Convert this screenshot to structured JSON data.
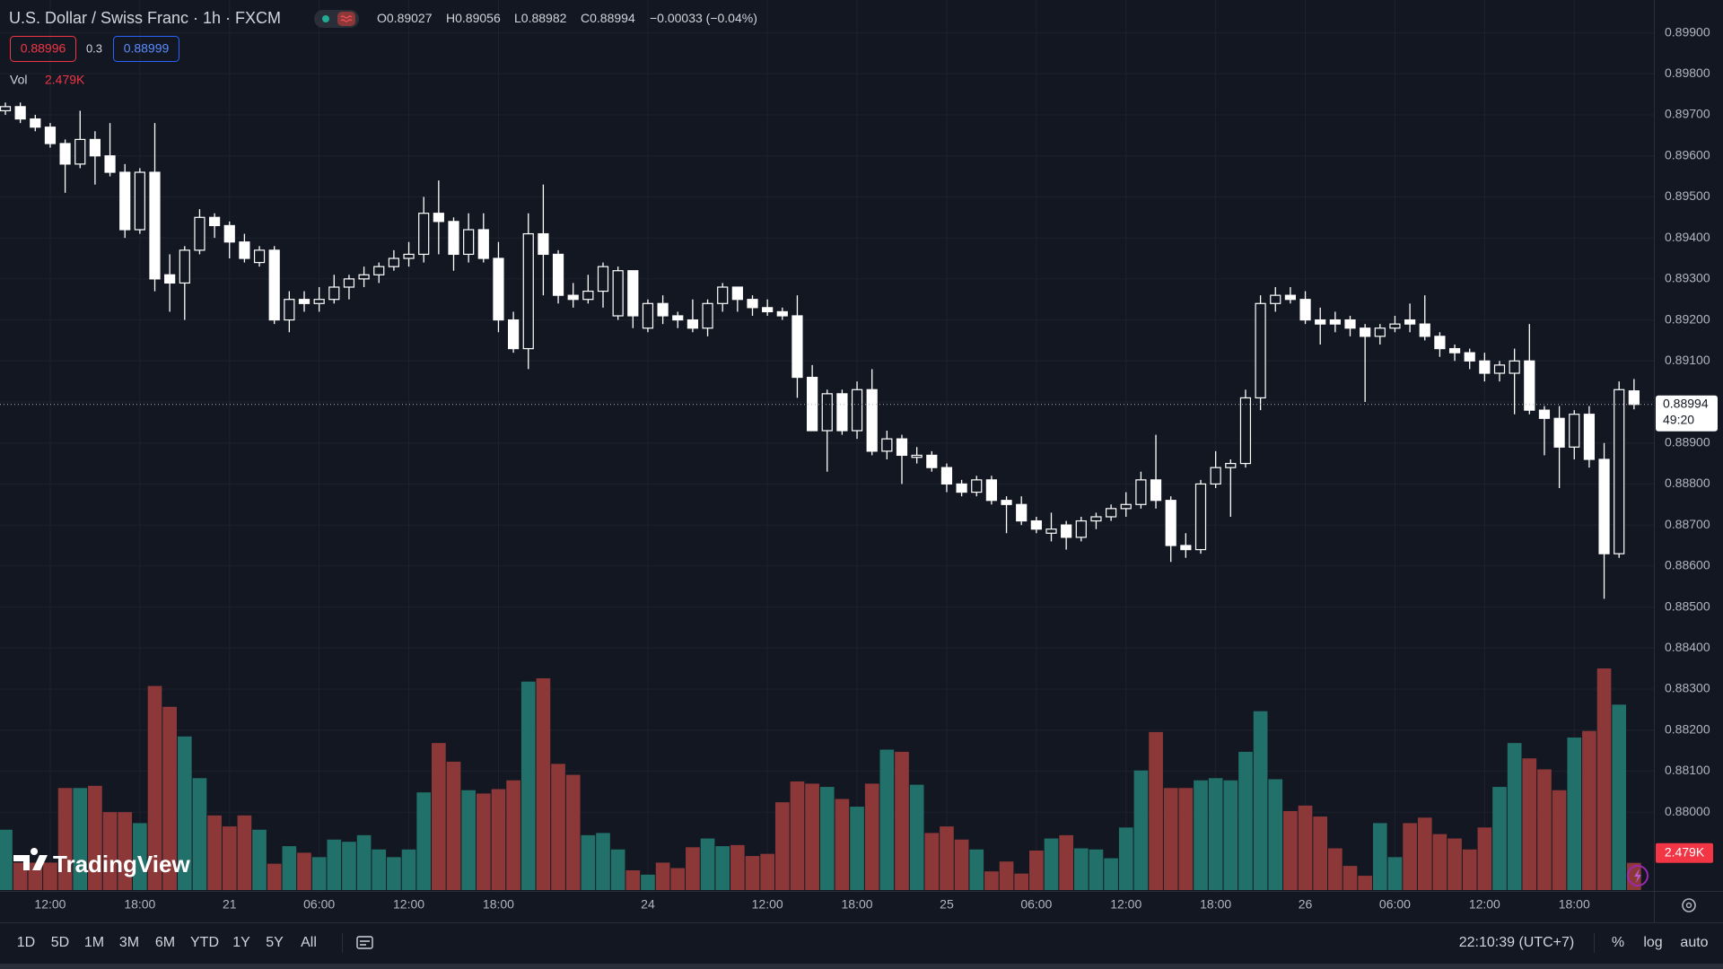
{
  "header": {
    "title": "U.S. Dollar / Swiss Franc · 1h · FXCM",
    "ohlc_labels": [
      "O",
      "H",
      "L",
      "C"
    ],
    "change": "−0.00033 (−0.04%)",
    "bid": "0.88996",
    "spread": "0.3",
    "ask": "0.88999",
    "volume_label": "Vol",
    "countdown": "49:20"
  },
  "logo": "TradingView",
  "toolbar": {
    "ranges": [
      "1D",
      "5D",
      "1M",
      "3M",
      "6M",
      "YTD",
      "1Y",
      "5Y",
      "All"
    ],
    "clock": "22:10:39 (UTC+7)",
    "options": [
      "%",
      "log",
      "auto"
    ]
  },
  "chart_data": {
    "type": "candlestick",
    "categories": [
      null,
      null,
      null,
      "12:00",
      null,
      null,
      null,
      null,
      null,
      "18:00",
      null,
      null,
      null,
      null,
      null,
      "21",
      null,
      null,
      null,
      null,
      null,
      "06:00",
      null,
      null,
      null,
      null,
      null,
      "12:00",
      null,
      null,
      null,
      null,
      null,
      "18:00",
      null,
      null,
      null,
      null,
      null,
      null,
      null,
      null,
      null,
      "24",
      null,
      null,
      null,
      null,
      null,
      null,
      null,
      "12:00",
      null,
      null,
      null,
      null,
      null,
      "18:00",
      null,
      null,
      null,
      null,
      null,
      "25",
      null,
      null,
      null,
      null,
      null,
      "06:00",
      null,
      null,
      null,
      null,
      null,
      "12:00",
      null,
      null,
      null,
      null,
      null,
      "18:00",
      null,
      null,
      null,
      null,
      null,
      "26",
      null,
      null,
      null,
      null,
      null,
      "06:00",
      null,
      null,
      null,
      null,
      null,
      "12:00",
      null,
      null,
      null,
      null,
      null,
      "18:00",
      null,
      null,
      null,
      null
    ],
    "open": [
      0.8971,
      0.8972,
      0.8969,
      0.8967,
      0.8963,
      0.8958,
      0.8964,
      0.896,
      0.8956,
      0.8942,
      0.8956,
      0.8931,
      0.8929,
      0.8937,
      0.8945,
      0.8943,
      0.8939,
      0.8934,
      0.8937,
      0.892,
      0.8925,
      0.8924,
      0.8925,
      0.8928,
      0.893,
      0.8931,
      0.8933,
      0.8935,
      0.8936,
      0.8946,
      0.8944,
      0.8936,
      0.8942,
      0.8935,
      0.892,
      0.8913,
      0.8941,
      0.8936,
      0.8926,
      0.8925,
      0.8927,
      0.8921,
      0.8932,
      0.8918,
      0.8924,
      0.8921,
      0.892,
      0.8918,
      0.8924,
      0.8928,
      0.8925,
      0.8923,
      0.8922,
      0.8921,
      0.8906,
      0.8893,
      0.8902,
      0.8893,
      0.8903,
      0.8888,
      0.8891,
      0.88865,
      0.8887,
      0.8884,
      0.888,
      0.8878,
      0.8881,
      0.8876,
      0.8875,
      0.8871,
      0.8868,
      0.887,
      0.8867,
      0.8871,
      0.8872,
      0.8874,
      0.8875,
      0.8881,
      0.8876,
      0.8865,
      0.8864,
      0.888,
      0.8884,
      0.8885,
      0.8901,
      0.8924,
      0.8926,
      0.8925,
      0.892,
      0.892,
      0.892,
      0.8918,
      0.8916,
      0.8918,
      0.892,
      0.8919,
      0.8916,
      0.8913,
      0.8912,
      0.891,
      0.8907,
      0.8907,
      0.891,
      0.8898,
      0.8896,
      0.8889,
      0.8897,
      0.8886,
      0.8863,
      0.89027
    ],
    "high": [
      0.8973,
      0.8973,
      0.897,
      0.8968,
      0.8964,
      0.8971,
      0.8966,
      0.8968,
      0.8958,
      0.8957,
      0.8968,
      0.8936,
      0.8938,
      0.8947,
      0.8946,
      0.8944,
      0.8941,
      0.8938,
      0.8938,
      0.8927,
      0.8927,
      0.8928,
      0.8931,
      0.8931,
      0.8933,
      0.8934,
      0.8937,
      0.8939,
      0.895,
      0.8954,
      0.8945,
      0.8946,
      0.8946,
      0.8939,
      0.8922,
      0.8946,
      0.8953,
      0.8937,
      0.8929,
      0.8931,
      0.8934,
      0.8933,
      0.8932,
      0.8925,
      0.8926,
      0.8922,
      0.8925,
      0.8925,
      0.8929,
      0.8928,
      0.8926,
      0.8925,
      0.8923,
      0.8926,
      0.8909,
      0.8903,
      0.8903,
      0.8905,
      0.8908,
      0.8893,
      0.8892,
      0.8889,
      0.8888,
      0.8885,
      0.8881,
      0.8882,
      0.8882,
      0.8877,
      0.8877,
      0.8872,
      0.8873,
      0.8871,
      0.8872,
      0.8873,
      0.8875,
      0.8878,
      0.8883,
      0.8892,
      0.8877,
      0.8868,
      0.8881,
      0.8888,
      0.8886,
      0.8903,
      0.8926,
      0.8928,
      0.8928,
      0.8927,
      0.8923,
      0.8922,
      0.8921,
      0.8919,
      0.8919,
      0.8921,
      0.8924,
      0.8926,
      0.8917,
      0.8914,
      0.8913,
      0.8912,
      0.891,
      0.8913,
      0.8919,
      0.8899,
      0.8899,
      0.8898,
      0.8899,
      0.889,
      0.8905,
      0.89056
    ],
    "low": [
      0.897,
      0.8968,
      0.8966,
      0.8962,
      0.8951,
      0.8957,
      0.8953,
      0.8955,
      0.894,
      0.8941,
      0.8927,
      0.8922,
      0.892,
      0.8936,
      0.894,
      0.8935,
      0.8934,
      0.8933,
      0.8919,
      0.8917,
      0.8922,
      0.8922,
      0.8924,
      0.8925,
      0.8928,
      0.8929,
      0.8932,
      0.8933,
      0.8934,
      0.8936,
      0.8932,
      0.8934,
      0.8934,
      0.8917,
      0.8912,
      0.8908,
      0.8926,
      0.8924,
      0.8923,
      0.8924,
      0.8923,
      0.892,
      0.8918,
      0.8917,
      0.8919,
      0.8918,
      0.8917,
      0.8916,
      0.8922,
      0.8922,
      0.8921,
      0.8921,
      0.892,
      0.8901,
      0.8893,
      0.8883,
      0.8892,
      0.8891,
      0.8887,
      0.8886,
      0.888,
      0.8885,
      0.8883,
      0.8878,
      0.8877,
      0.8877,
      0.8875,
      0.8868,
      0.887,
      0.8868,
      0.8866,
      0.8864,
      0.8866,
      0.8869,
      0.8871,
      0.8872,
      0.8874,
      0.8874,
      0.8861,
      0.8862,
      0.8863,
      0.8879,
      0.8872,
      0.8884,
      0.8898,
      0.8922,
      0.8924,
      0.8919,
      0.8914,
      0.8917,
      0.8916,
      0.89,
      0.8914,
      0.8917,
      0.8917,
      0.8915,
      0.8911,
      0.891,
      0.8908,
      0.8905,
      0.8905,
      0.8897,
      0.8897,
      0.8887,
      0.8879,
      0.8886,
      0.8884,
      0.8852,
      0.8862,
      0.88982
    ],
    "close": [
      0.8972,
      0.8969,
      0.8967,
      0.8963,
      0.8958,
      0.8964,
      0.896,
      0.8956,
      0.8942,
      0.8956,
      0.893,
      0.8929,
      0.8937,
      0.8945,
      0.8943,
      0.8939,
      0.8935,
      0.8937,
      0.892,
      0.8925,
      0.8924,
      0.8925,
      0.8928,
      0.893,
      0.8931,
      0.8933,
      0.8935,
      0.8936,
      0.8946,
      0.8944,
      0.8936,
      0.8942,
      0.8935,
      0.892,
      0.8913,
      0.8941,
      0.8936,
      0.8926,
      0.8925,
      0.8927,
      0.8933,
      0.8932,
      0.8921,
      0.8924,
      0.8921,
      0.892,
      0.8918,
      0.8924,
      0.8928,
      0.8925,
      0.8923,
      0.8922,
      0.8921,
      0.8906,
      0.8893,
      0.8902,
      0.8893,
      0.8903,
      0.8888,
      0.8891,
      0.8887,
      0.8887,
      0.8884,
      0.888,
      0.8878,
      0.8881,
      0.8876,
      0.8875,
      0.8871,
      0.8869,
      0.8869,
      0.8867,
      0.8871,
      0.8872,
      0.8874,
      0.8875,
      0.8881,
      0.8876,
      0.8865,
      0.8864,
      0.888,
      0.8884,
      0.8885,
      0.8901,
      0.8924,
      0.8926,
      0.8925,
      0.892,
      0.8919,
      0.8919,
      0.8918,
      0.8916,
      0.8918,
      0.8919,
      0.8919,
      0.8916,
      0.8913,
      0.8912,
      0.891,
      0.8907,
      0.8909,
      0.891,
      0.8898,
      0.8896,
      0.8889,
      0.8897,
      0.8886,
      0.8863,
      0.8903,
      0.88994
    ],
    "volume": [
      5500,
      2500,
      2500,
      2500,
      9300,
      9300,
      9500,
      7100,
      7100,
      6100,
      18600,
      16700,
      14000,
      10200,
      6800,
      5800,
      6800,
      5500,
      2400,
      4000,
      3400,
      3000,
      4600,
      4400,
      5000,
      3700,
      3000,
      3700,
      8900,
      13400,
      11700,
      9100,
      8800,
      9200,
      10000,
      19000,
      19300,
      11500,
      10500,
      5000,
      5200,
      3700,
      1800,
      1400,
      2500,
      2000,
      3900,
      4700,
      4000,
      4100,
      3100,
      3300,
      8000,
      9900,
      9700,
      9400,
      8300,
      7600,
      9700,
      12800,
      12600,
      9600,
      5200,
      5800,
      4600,
      3700,
      1700,
      2600,
      1500,
      3600,
      4700,
      5000,
      3800,
      3700,
      2900,
      5700,
      10900,
      14400,
      9300,
      9300,
      10000,
      10200,
      10000,
      12600,
      16300,
      10100,
      7200,
      7700,
      6700,
      3800,
      2200,
      1300,
      6100,
      3000,
      6100,
      6600,
      5100,
      4700,
      3700,
      5700,
      9400,
      13400,
      12000,
      11000,
      9100,
      13900,
      14500,
      20200,
      16900,
      2479
    ],
    "volume_value_labels": [
      null,
      null,
      null,
      null,
      null,
      null,
      null,
      null,
      null,
      null,
      null,
      null,
      null,
      null,
      null,
      null,
      null,
      null,
      null,
      null,
      null,
      null,
      null,
      null,
      null,
      null,
      null,
      null,
      null,
      null,
      null,
      null,
      null,
      null,
      null,
      null,
      null,
      null,
      null,
      null,
      null,
      null,
      null,
      null,
      null,
      null,
      null,
      null,
      null,
      null,
      null,
      null,
      null,
      null,
      null,
      null,
      null,
      null,
      null,
      null,
      null,
      null,
      null,
      null,
      null,
      null,
      null,
      null,
      null,
      null,
      null,
      null,
      null,
      null,
      null,
      null,
      null,
      null,
      null,
      null,
      null,
      null,
      null,
      null,
      null,
      null,
      null,
      null,
      null,
      null,
      null,
      null,
      null,
      null,
      null,
      null,
      null,
      null,
      null,
      null,
      null,
      null,
      null,
      null,
      null,
      null,
      null,
      null,
      null,
      "2.479K"
    ],
    "ylim": [
      0.8781,
      0.8998
    ],
    "yticks": [
      {
        "value": 0.88,
        "label": "0.88000"
      },
      {
        "value": 0.881,
        "label": "0.88100"
      },
      {
        "value": 0.882,
        "label": "0.88200"
      },
      {
        "value": 0.883,
        "label": "0.88300"
      },
      {
        "value": 0.884,
        "label": "0.88400"
      },
      {
        "value": 0.885,
        "label": "0.88500"
      },
      {
        "value": 0.886,
        "label": "0.88600"
      },
      {
        "value": 0.887,
        "label": "0.88700"
      },
      {
        "value": 0.888,
        "label": "0.88800"
      },
      {
        "value": 0.889,
        "label": "0.88900"
      },
      {
        "value": 0.89,
        "label": "0.89000"
      },
      {
        "value": 0.891,
        "label": "0.89100"
      },
      {
        "value": 0.892,
        "label": "0.89200"
      },
      {
        "value": 0.893,
        "label": "0.89300"
      },
      {
        "value": 0.894,
        "label": "0.89400"
      },
      {
        "value": 0.895,
        "label": "0.89500"
      },
      {
        "value": 0.896,
        "label": "0.89600"
      },
      {
        "value": 0.897,
        "label": "0.89700"
      },
      {
        "value": 0.898,
        "label": "0.89800"
      },
      {
        "value": 0.899,
        "label": "0.89900"
      }
    ],
    "grid": true,
    "candle_color": "#ffffff",
    "volume_up_color": "#22706a",
    "volume_down_color": "#8d3838",
    "down_badge_color": "#f23645"
  }
}
